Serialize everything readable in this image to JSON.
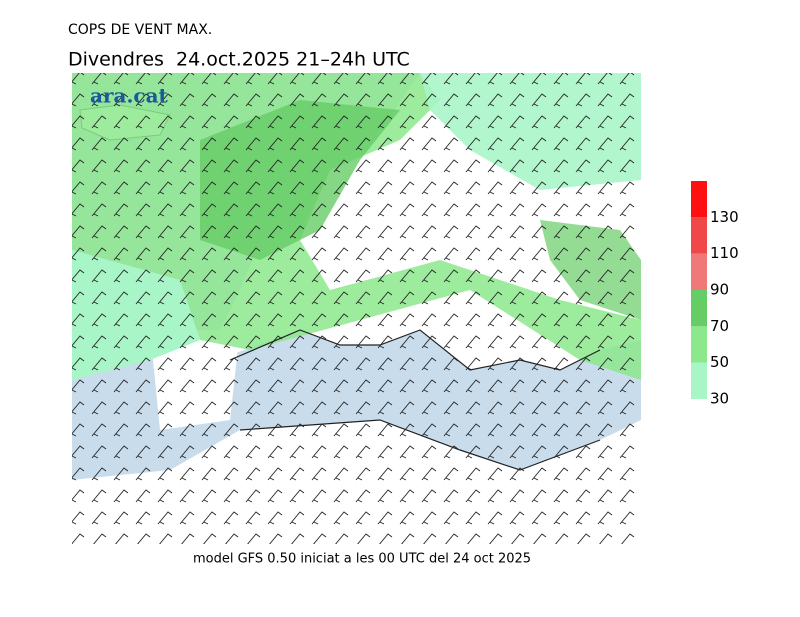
{
  "header": {
    "title": "COPS DE VENT MAX.",
    "subtitle": "Divendres  24.oct.2025 21–24h UTC",
    "logo": "ara.cat"
  },
  "footer": "model GFS 0.50 iniciat a les 00 UTC del 24 oct 2025",
  "colorbar": {
    "lim": [
      30,
      150
    ],
    "ticks": [
      30,
      50,
      70,
      90,
      110,
      130
    ],
    "colors": [
      "#a8f5c8",
      "#8ce88c",
      "#66cc66",
      "#f07878",
      "#f04848",
      "#ff1010"
    ]
  }
}
